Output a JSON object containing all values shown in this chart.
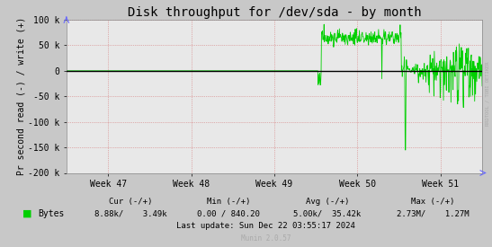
{
  "title": "Disk throughput for /dev/sda - by month",
  "ylabel": "Pr second read (-) / write (+)",
  "ylim": [
    -200000,
    100000
  ],
  "yticks": [
    -200000,
    -150000,
    -100000,
    -50000,
    0,
    50000,
    100000
  ],
  "ytick_labels": [
    "-200 k",
    "-150 k",
    "-100 k",
    "-50 k",
    "0",
    "50 k",
    "100 k"
  ],
  "xtick_labels": [
    "Week 47",
    "Week 48",
    "Week 49",
    "Week 50",
    "Week 51"
  ],
  "xtick_positions": [
    0.1,
    0.3,
    0.5,
    0.7,
    0.9
  ],
  "line_color": "#00cf00",
  "zero_line_color": "#000000",
  "bg_color": "#e8e8e8",
  "outer_bg_color": "#c8c8c8",
  "grid_color": "#ff6666",
  "border_color": "#aaaaaa",
  "legend_square_color": "#00cf00",
  "legend_label": "Bytes",
  "cur_label": "Cur (-/+)",
  "cur_val": "8.88k/    3.49k",
  "min_label": "Min (-/+)",
  "min_val": "0.00 / 840.20",
  "avg_label": "Avg (-/+)",
  "avg_val": "5.00k/  35.42k",
  "max_label": "Max (-/+)",
  "max_val": "2.73M/    1.27M",
  "last_update": "Last update: Sun Dec 22 03:55:17 2024",
  "munin_label": "Munin 2.0.57",
  "rrdtool_label": "RRDTOOL / TOBI OETIKER",
  "title_fontsize": 10,
  "tick_fontsize": 7,
  "legend_fontsize": 7,
  "ylabel_fontsize": 7
}
